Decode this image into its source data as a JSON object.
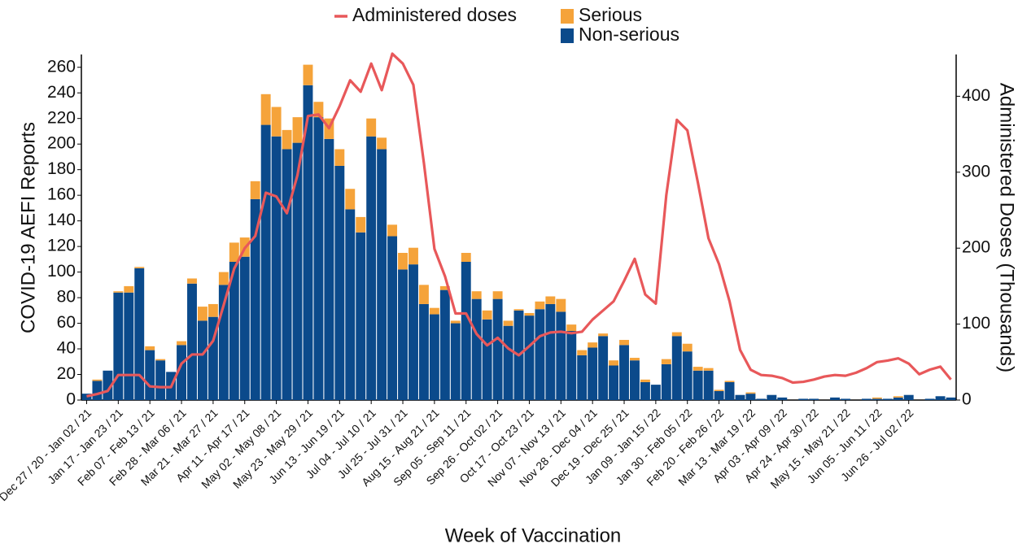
{
  "chart_data": {
    "type": "bar",
    "x_label": "Week of Vaccination",
    "y_label": "COVID-19 AEFI Reports",
    "y2_label": "Administered Doses (Thousands)",
    "categories": [
      "Dec 27 / 20 - Jan 02 / 21",
      null,
      null,
      "Jan 17 - Jan 23 / 21",
      null,
      null,
      "Feb 07 - Feb 13 / 21",
      null,
      null,
      "Feb 28 - Mar 06 / 21",
      null,
      null,
      "Mar 21 - Mar 27 / 21",
      null,
      null,
      "Apr 11 - Apr 17 / 21",
      null,
      null,
      "May 02 - May 08 / 21",
      null,
      null,
      "May 23 - May 29 / 21",
      null,
      null,
      "Jun 13 - Jun 19 / 21",
      null,
      null,
      "Jul 04 - Jul 10 / 21",
      null,
      null,
      "Jul 25 - Jul 31 / 21",
      null,
      null,
      "Aug 15 - Aug 21 / 21",
      null,
      null,
      "Sep 05 - Sep 11 / 21",
      null,
      null,
      "Sep 26 - Oct 02 / 21",
      null,
      null,
      "Oct 17 - Oct 23 / 21",
      null,
      null,
      "Nov 07 - Nov 13 / 21",
      null,
      null,
      "Nov 28 - Dec 04 / 21",
      null,
      null,
      "Dec 19 - Dec 25 / 21",
      null,
      null,
      "Jan 09 - Jan 15 / 22",
      null,
      null,
      "Jan 30 - Feb 05 / 22",
      null,
      null,
      "Feb 20 - Feb 26 / 22",
      null,
      null,
      "Mar 13 - Mar 19 / 22",
      null,
      null,
      "Apr 03 - Apr 09 / 22",
      null,
      null,
      "Apr 24 - Apr 30 / 22",
      null,
      null,
      "May 15 - May 21 / 22",
      null,
      null,
      "Jun 05 - Jun 11 / 22",
      null,
      null,
      "Jun 26 - Jul 02 / 22",
      null,
      null,
      null,
      null
    ],
    "series": [
      {
        "name": "Non-serious",
        "type": "bar",
        "color": "#0b4a8b",
        "values": [
          5,
          15,
          23,
          84,
          84,
          103,
          39,
          31,
          22,
          43,
          91,
          62,
          65,
          90,
          108,
          112,
          157,
          215,
          206,
          196,
          201,
          246,
          221,
          204,
          183,
          149,
          131,
          206,
          196,
          128,
          102,
          106,
          75,
          67,
          86,
          60,
          108,
          79,
          63,
          79,
          58,
          70,
          66,
          71,
          75,
          69,
          54,
          35,
          41,
          50,
          27,
          43,
          31,
          14,
          12,
          28,
          50,
          38,
          23,
          23,
          7,
          14,
          4,
          5,
          1,
          4,
          2,
          0,
          1,
          1,
          0,
          2,
          1,
          0,
          1,
          1,
          1,
          2,
          4,
          0,
          1,
          3,
          2
        ]
      },
      {
        "name": "Serious",
        "type": "bar",
        "color": "#f5a33a",
        "values": [
          0,
          1,
          0,
          1,
          5,
          1,
          3,
          1,
          0,
          3,
          4,
          11,
          10,
          10,
          15,
          15,
          14,
          24,
          23,
          15,
          20,
          16,
          12,
          16,
          13,
          16,
          12,
          14,
          9,
          9,
          13,
          13,
          15,
          5,
          3,
          2,
          7,
          6,
          7,
          6,
          4,
          1,
          2,
          6,
          6,
          10,
          5,
          4,
          4,
          2,
          4,
          4,
          2,
          2,
          0,
          4,
          3,
          6,
          3,
          2,
          1,
          1,
          0,
          1,
          0,
          0,
          0,
          0,
          0,
          0,
          0,
          0,
          0,
          0,
          0,
          1,
          0,
          1,
          0,
          0,
          0,
          0,
          0
        ]
      },
      {
        "name": "Administered doses",
        "type": "line",
        "axis": "y2",
        "color": "#e8585a",
        "values": [
          5,
          8,
          12,
          33,
          33,
          33,
          18,
          17,
          17,
          48,
          60,
          60,
          78,
          125,
          173,
          200,
          216,
          273,
          268,
          246,
          296,
          374,
          376,
          358,
          387,
          421,
          406,
          443,
          408,
          456,
          443,
          415,
          312,
          199,
          163,
          114,
          114,
          87,
          72,
          82,
          68,
          59,
          71,
          84,
          89,
          90,
          88,
          90,
          106,
          118,
          130,
          157,
          186,
          139,
          127,
          270,
          369,
          355,
          286,
          213,
          179,
          130,
          66,
          40,
          33,
          32,
          29,
          23,
          24,
          27,
          31,
          33,
          32,
          36,
          42,
          50,
          52,
          55,
          48,
          34,
          40,
          44,
          27
        ]
      }
    ],
    "ylim": [
      0,
      270
    ],
    "yticks": [
      0,
      20,
      40,
      60,
      80,
      100,
      120,
      140,
      160,
      180,
      200,
      220,
      240,
      260
    ],
    "y2lim": [
      0,
      455
    ],
    "y2ticks": [
      0,
      100,
      200,
      300,
      400
    ],
    "stacked": true,
    "grid": false,
    "legend": "top"
  }
}
